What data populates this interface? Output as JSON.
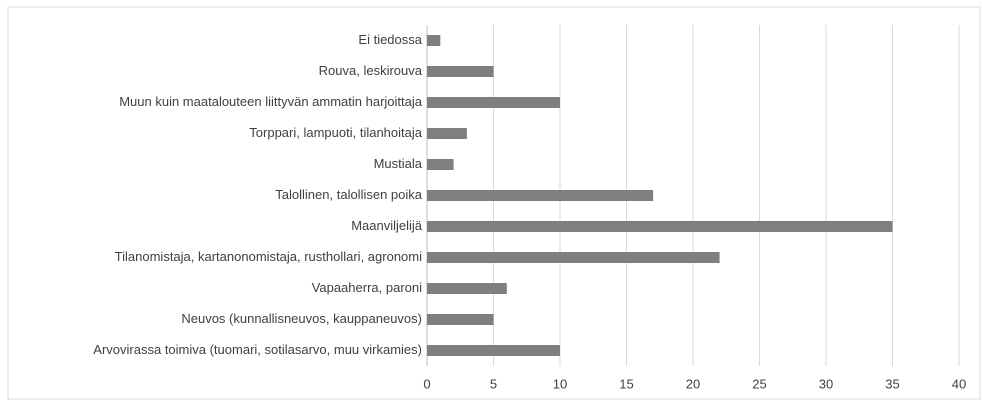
{
  "chart_data": {
    "type": "barh",
    "categories": [
      "Ei tiedossa",
      "Rouva, leskirouva",
      "Muun kuin maatalouteen liittyvän ammatin harjoittaja",
      "Torppari, lampuoti, tilanhoitaja",
      "Mustiala",
      "Talollinen, talollisen poika",
      "Maanviljelijä",
      "Tilanomistaja, kartanonomistaja, rusthollari, agronomi",
      "Vapaaherra, paroni",
      "Neuvos (kunnallisneuvos, kauppaneuvos)",
      "Arvovirassa toimiva (tuomari, sotilasarvo, muu virkamies)"
    ],
    "values": [
      1,
      5,
      10,
      3,
      2,
      17,
      35,
      22,
      6,
      5,
      10
    ],
    "color": "#7f7f7f",
    "xlim": [
      0,
      40
    ],
    "xticks": [
      0,
      5,
      10,
      15,
      20,
      25,
      30,
      35,
      40
    ],
    "grid": true
  }
}
